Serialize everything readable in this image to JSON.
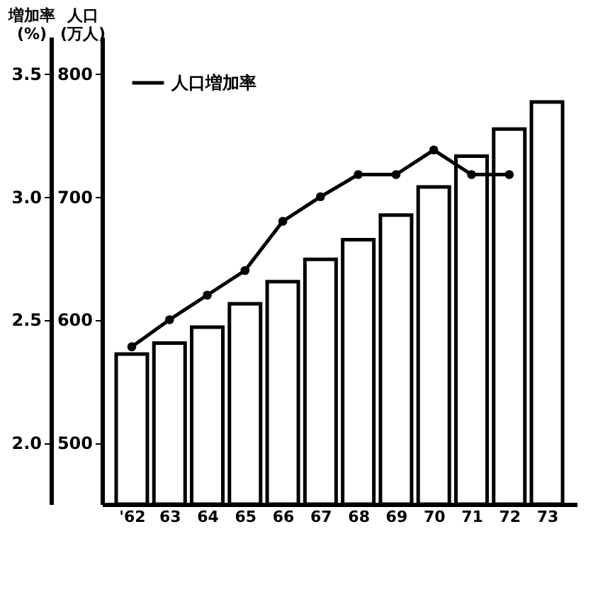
{
  "chart_data": {
    "type": "bar",
    "categories": [
      "'62",
      "63",
      "64",
      "65",
      "66",
      "67",
      "68",
      "69",
      "70",
      "71",
      "72",
      "73"
    ],
    "ylabel": "増加率\n(%)",
    "y2label": "人口\n(万人)",
    "ylim": [
      1.75,
      3.65
    ],
    "yticks": [
      {
        "value": 2.0,
        "label": "2.0"
      },
      {
        "value": 2.5,
        "label": "2.5"
      },
      {
        "value": 3.0,
        "label": "3.0"
      },
      {
        "value": 3.5,
        "label": "3.5"
      }
    ],
    "y2lim": [
      450,
      830
    ],
    "y2ticks": [
      500,
      600,
      700,
      800
    ],
    "series": [
      {
        "axis": "y2",
        "color": "#ffffff",
        "values": [
          572,
          581,
          594,
          613,
          631,
          649,
          665,
          685,
          708,
          733,
          755,
          777
        ]
      },
      {
        "type": "line",
        "name": "人口増加率",
        "color": "#000000",
        "values": [
          2.39,
          2.5,
          2.6,
          2.7,
          2.9,
          3.0,
          3.09,
          3.09,
          3.19,
          3.09,
          3.09,
          null
        ]
      }
    ],
    "marker": "circle",
    "line_style": "solid",
    "legend": "top left",
    "grid": false
  }
}
